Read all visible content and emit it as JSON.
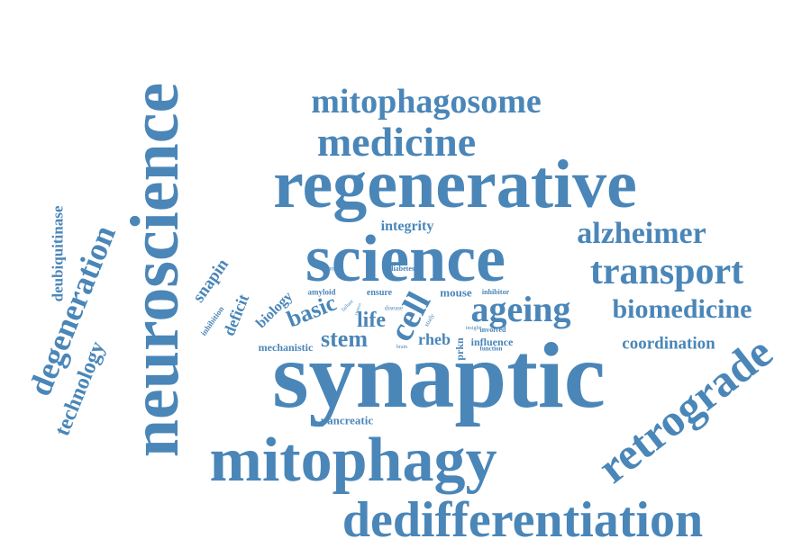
{
  "word_cloud": {
    "color": "#4a86b8",
    "words": {
      "synaptic": "synaptic",
      "neuroscience": "neuroscience",
      "regenerative": "regenerative",
      "science": "science",
      "mitophagy": "mitophagy",
      "dedifferentiation": "dedifferentiation",
      "retrograde": "retrograde",
      "medicine": "medicine",
      "mitophagosome": "mitophagosome",
      "transport": "transport",
      "ageing": "ageing",
      "alzheimer": "alzheimer",
      "biomedicine": "biomedicine",
      "degeneration": "degeneration",
      "technology": "technology",
      "deubiquitinase": "deubiquitinase",
      "cell": "cell",
      "stem": "stem",
      "basic": "basic",
      "life": "life",
      "coordination": "coordination",
      "snapin": "snapin",
      "deficit": "deficit",
      "biology": "biology",
      "integrity": "integrity",
      "rheb": "rheb",
      "mechanistic": "mechanistic",
      "mouse": "mouse",
      "influence": "influence",
      "pancreatic": "pancreatic",
      "inhibition": "inhibition",
      "amyloid": "amyloid",
      "ensure": "ensure",
      "prkn": "prkn",
      "control": "control",
      "diabetes": "diabetes",
      "inhibitor": "inhibitor",
      "involved": "involved",
      "function": "function",
      "failure": "failure",
      "disease": "disease",
      "study": "study",
      "insight": "insight",
      "system": "system",
      "brain": "brain"
    }
  }
}
